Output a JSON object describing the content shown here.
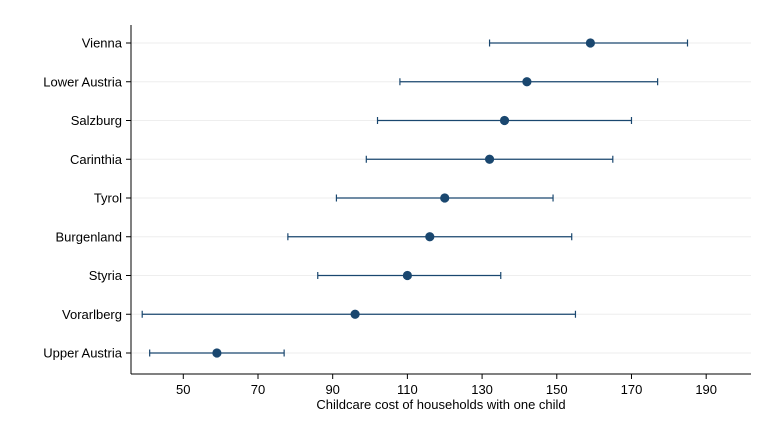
{
  "chart_data": {
    "type": "dot-errorbar",
    "xlabel": "Childcare cost of households with one child",
    "ylabel": "",
    "xlim": [
      36,
      202
    ],
    "x_ticks": [
      50,
      70,
      90,
      110,
      130,
      150,
      170,
      190
    ],
    "x_tick_labels": [
      "50",
      "70",
      "90",
      "110",
      "130",
      "150",
      "170",
      "190"
    ],
    "grid": "horizontal",
    "legend": "none",
    "categories": [
      "Vienna",
      "Lower Austria",
      "Salzburg",
      "Carinthia",
      "Tyrol",
      "Burgenland",
      "Styria",
      "Vorarlberg",
      "Upper Austria"
    ],
    "estimates": [
      159,
      142,
      136,
      132,
      120,
      116,
      110,
      96,
      59
    ],
    "ci_low": [
      132,
      108,
      102,
      99,
      91,
      78,
      86,
      39,
      41
    ],
    "ci_high": [
      185,
      177,
      170,
      165,
      149,
      154,
      135,
      155,
      77
    ],
    "colors": {
      "marker": "#1a476f",
      "ci": "#1a476f",
      "grid": "#eeeeee",
      "axis": "#000000"
    }
  }
}
